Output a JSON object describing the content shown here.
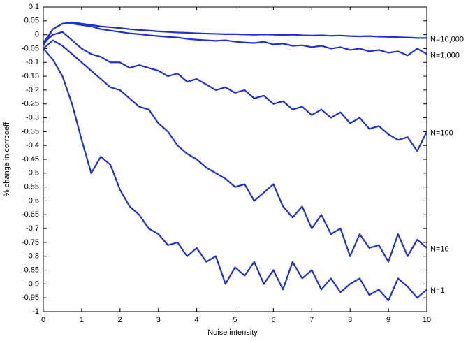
{
  "chart_data": {
    "type": "line",
    "xlabel": "Noise intensity",
    "ylabel": "% change in corrcoeff",
    "x": [
      0,
      0.25,
      0.5,
      0.75,
      1,
      1.25,
      1.5,
      1.75,
      2,
      2.25,
      2.5,
      2.75,
      3,
      3.25,
      3.5,
      3.75,
      4,
      4.25,
      4.5,
      4.75,
      5,
      5.25,
      5.5,
      5.75,
      6,
      6.25,
      6.5,
      6.75,
      7,
      7.25,
      7.5,
      7.75,
      8,
      8.25,
      8.5,
      8.75,
      9,
      9.25,
      9.5,
      9.75,
      10
    ],
    "series": [
      {
        "name": "N=10,000",
        "color": "#1f2fd8",
        "values": [
          -0.03,
          0.02,
          0.04,
          0.045,
          0.04,
          0.035,
          0.03,
          0.027,
          0.024,
          0.02,
          0.017,
          0.015,
          0.012,
          0.01,
          0.008,
          0.007,
          0.005,
          0.004,
          0.003,
          0.002,
          0.002,
          0.001,
          0,
          0.001,
          0,
          -0.001,
          0,
          -0.002,
          -0.003,
          -0.002,
          -0.004,
          -0.003,
          -0.005,
          -0.006,
          -0.005,
          -0.007,
          -0.008,
          -0.009,
          -0.01,
          -0.012,
          -0.012
        ]
      },
      {
        "name": "N=1,000",
        "color": "#1f2fd8",
        "values": [
          -0.04,
          0.02,
          0.04,
          0.04,
          0.035,
          0.03,
          0.02,
          0.015,
          0.01,
          0.005,
          0.002,
          -0.002,
          -0.005,
          -0.008,
          -0.01,
          -0.015,
          -0.018,
          -0.02,
          -0.022,
          -0.02,
          -0.025,
          -0.028,
          -0.03,
          -0.025,
          -0.035,
          -0.032,
          -0.04,
          -0.038,
          -0.045,
          -0.04,
          -0.05,
          -0.045,
          -0.055,
          -0.05,
          -0.06,
          -0.055,
          -0.065,
          -0.06,
          -0.075,
          -0.05,
          -0.07
        ]
      },
      {
        "name": "N=100",
        "color": "#1f2fd8",
        "values": [
          -0.03,
          0,
          0.01,
          -0.02,
          -0.05,
          -0.07,
          -0.08,
          -0.1,
          -0.1,
          -0.12,
          -0.11,
          -0.12,
          -0.13,
          -0.15,
          -0.14,
          -0.17,
          -0.16,
          -0.18,
          -0.2,
          -0.19,
          -0.21,
          -0.2,
          -0.23,
          -0.22,
          -0.25,
          -0.24,
          -0.27,
          -0.26,
          -0.29,
          -0.27,
          -0.3,
          -0.28,
          -0.32,
          -0.3,
          -0.34,
          -0.33,
          -0.36,
          -0.38,
          -0.37,
          -0.42,
          -0.35
        ]
      },
      {
        "name": "N=10",
        "color": "#1f2fd8",
        "values": [
          -0.05,
          -0.02,
          -0.04,
          -0.07,
          -0.1,
          -0.13,
          -0.16,
          -0.19,
          -0.2,
          -0.23,
          -0.26,
          -0.27,
          -0.32,
          -0.35,
          -0.4,
          -0.43,
          -0.45,
          -0.48,
          -0.5,
          -0.52,
          -0.55,
          -0.54,
          -0.6,
          -0.57,
          -0.54,
          -0.62,
          -0.66,
          -0.62,
          -0.7,
          -0.65,
          -0.72,
          -0.7,
          -0.8,
          -0.72,
          -0.77,
          -0.76,
          -0.82,
          -0.72,
          -0.8,
          -0.74,
          -0.77
        ]
      },
      {
        "name": "N=1",
        "color": "#1f2fd8",
        "values": [
          -0.05,
          -0.09,
          -0.15,
          -0.25,
          -0.38,
          -0.5,
          -0.44,
          -0.47,
          -0.56,
          -0.62,
          -0.65,
          -0.7,
          -0.72,
          -0.76,
          -0.75,
          -0.8,
          -0.77,
          -0.82,
          -0.8,
          -0.9,
          -0.84,
          -0.87,
          -0.82,
          -0.9,
          -0.85,
          -0.92,
          -0.82,
          -0.88,
          -0.85,
          -0.92,
          -0.88,
          -0.93,
          -0.9,
          -0.88,
          -0.94,
          -0.92,
          -0.96,
          -0.88,
          -0.91,
          -0.95,
          -0.92
        ]
      }
    ],
    "xlim": [
      0,
      10
    ],
    "xticks": [
      0,
      1,
      2,
      3,
      4,
      5,
      6,
      7,
      8,
      9,
      10
    ],
    "ylim": [
      -1,
      0.1
    ],
    "yticks": [
      0.1,
      0.05,
      0,
      -0.05,
      -0.1,
      -0.15,
      -0.2,
      -0.25,
      -0.3,
      -0.35,
      -0.4,
      -0.45,
      -0.5,
      -0.55,
      -0.6,
      -0.65,
      -0.7,
      -0.75,
      -0.8,
      -0.85,
      -0.9,
      -0.95,
      -1
    ]
  }
}
